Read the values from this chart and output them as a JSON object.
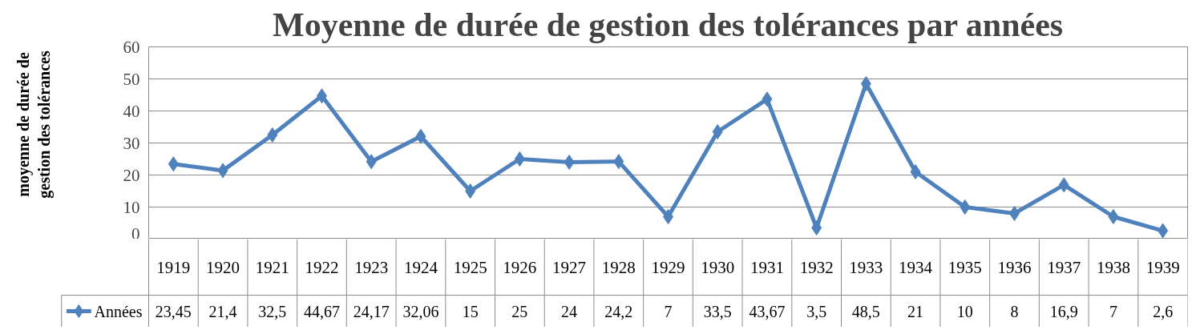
{
  "chart_data": {
    "type": "line",
    "title": "Moyenne de durée de gestion des tolérances par années",
    "ylabel": "moyenne de durée de gestion des tolérances",
    "categories": [
      "1919",
      "1920",
      "1921",
      "1922",
      "1923",
      "1924",
      "1925",
      "1926",
      "1927",
      "1928",
      "1929",
      "1930",
      "1931",
      "1932",
      "1933",
      "1934",
      "1935",
      "1936",
      "1937",
      "1938",
      "1939"
    ],
    "series": [
      {
        "name": "Années",
        "color": "#4f81bd",
        "values": [
          23.45,
          21.4,
          32.5,
          44.67,
          24.17,
          32.06,
          15,
          25,
          24,
          24.2,
          7,
          33.5,
          43.67,
          3.5,
          48.5,
          21,
          10,
          8,
          16.9,
          7,
          2.6
        ],
        "value_labels": [
          "23,45",
          "21,4",
          "32,5",
          "44,67",
          "24,17",
          "32,06",
          "15",
          "25",
          "24",
          "24,2",
          "7",
          "33,5",
          "43,67",
          "3,5",
          "48,5",
          "21",
          "10",
          "8",
          "16,9",
          "7",
          "2,6"
        ]
      }
    ],
    "ylim": [
      0,
      60
    ],
    "yticks": [
      0,
      10,
      20,
      30,
      40,
      50,
      60
    ],
    "grid": "y",
    "legend": "bottom",
    "marker": "diamond",
    "line_style": "solid"
  }
}
